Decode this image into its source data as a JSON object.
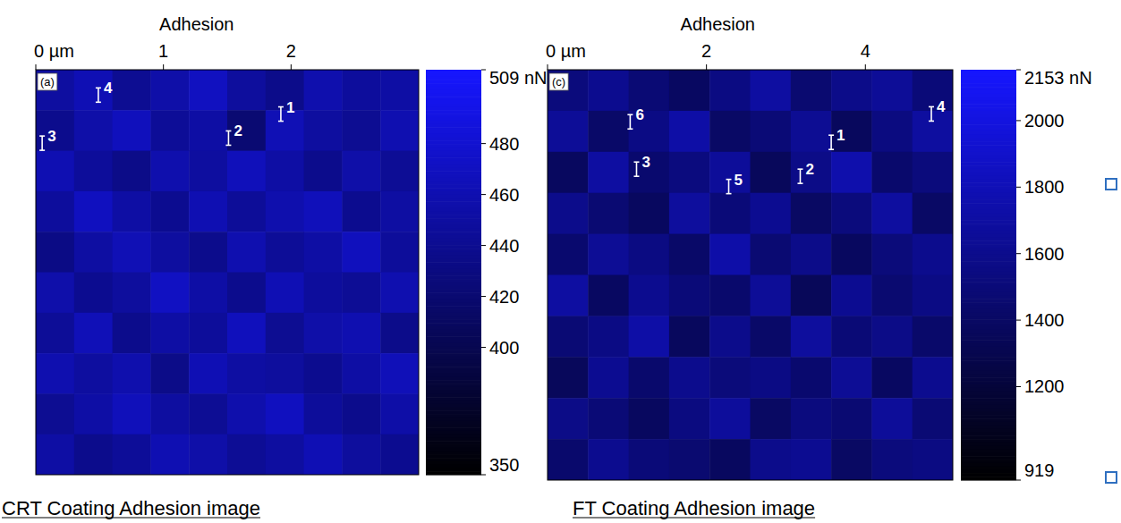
{
  "chart_data": [
    {
      "type": "heatmap",
      "title": "Adhesion",
      "panel": "(a)",
      "caption": "CRT Coating Adhesion image",
      "xlim": [
        0,
        3
      ],
      "xticks": [
        {
          "value": 0,
          "label": "0 µm"
        },
        1,
        2
      ],
      "ylim": [
        0,
        3.2
      ],
      "tick_labels": "x",
      "color": "#0000ff",
      "colorbar": {
        "range": [
          350,
          509
        ],
        "ticks": [
          {
            "value": 509,
            "label": "509 nN"
          },
          480,
          460,
          440,
          420,
          400,
          350
        ]
      },
      "cells": [
        [
          450,
          462,
          441,
          455,
          470,
          448,
          436,
          458,
          447,
          452
        ],
        [
          438,
          455,
          467,
          444,
          452,
          421,
          463,
          449,
          441,
          460
        ],
        [
          461,
          446,
          435,
          458,
          449,
          466,
          452,
          437,
          455,
          443
        ],
        [
          447,
          469,
          452,
          440,
          461,
          445,
          458,
          466,
          439,
          451
        ],
        [
          433,
          451,
          463,
          449,
          437,
          459,
          444,
          452,
          468,
          446
        ],
        [
          456,
          440,
          448,
          471,
          453,
          438,
          462,
          447,
          443,
          459
        ],
        [
          444,
          464,
          437,
          452,
          446,
          467,
          441,
          455,
          460,
          436
        ],
        [
          459,
          449,
          458,
          435,
          462,
          451,
          448,
          439,
          452,
          465
        ],
        [
          441,
          453,
          466,
          450,
          442,
          457,
          469,
          446,
          437,
          454
        ],
        [
          452,
          437,
          445,
          461,
          455,
          443,
          450,
          462,
          448,
          440
        ]
      ],
      "annotations": [
        {
          "text": "1",
          "x": 1.92,
          "y": 0.35
        },
        {
          "text": "2",
          "x": 1.51,
          "y": 0.54
        },
        {
          "text": "3",
          "x": 0.05,
          "y": 0.58
        },
        {
          "text": "4",
          "x": 0.49,
          "y": 0.2
        }
      ]
    },
    {
      "type": "heatmap",
      "title": "Adhesion",
      "panel": "(c)",
      "caption": "FT Coating Adhesion image",
      "xlim": [
        0,
        5.1
      ],
      "xticks": [
        {
          "value": 0,
          "label": "0 µm"
        },
        2,
        4
      ],
      "ylim": [
        0,
        5.2
      ],
      "tick_labels": "x",
      "color": "#0000ff",
      "colorbar": {
        "range": [
          919,
          2153
        ],
        "ticks": [
          {
            "value": 2153,
            "label": "2153 nN"
          },
          2000,
          1800,
          1600,
          1400,
          1200,
          919
        ]
      },
      "cells": [
        [
          1520,
          1610,
          1480,
          1390,
          1550,
          1700,
          1460,
          1580,
          1650,
          1500
        ],
        [
          1650,
          1420,
          1560,
          1720,
          1410,
          1490,
          1630,
          1370,
          1540,
          1690
        ],
        [
          1380,
          1700,
          1450,
          1530,
          1660,
          1360,
          1570,
          1750,
          1440,
          1520
        ],
        [
          1590,
          1470,
          1380,
          1680,
          1500,
          1620,
          1400,
          1520,
          1690,
          1410
        ],
        [
          1450,
          1640,
          1550,
          1420,
          1730,
          1470,
          1580,
          1380,
          1510,
          1600
        ],
        [
          1700,
          1390,
          1610,
          1500,
          1440,
          1650,
          1350,
          1620,
          1460,
          1560
        ],
        [
          1480,
          1560,
          1720,
          1370,
          1590,
          1420,
          1680,
          1490,
          1570,
          1430
        ],
        [
          1360,
          1620,
          1440,
          1600,
          1510,
          1560,
          1450,
          1640,
          1390,
          1610
        ],
        [
          1570,
          1490,
          1380,
          1540,
          1670,
          1400,
          1530,
          1470,
          1660,
          1480
        ],
        [
          1440,
          1610,
          1500,
          1460,
          1380,
          1590,
          1620,
          1400,
          1520,
          1550
        ]
      ],
      "annotations": [
        {
          "text": "1",
          "x": 3.57,
          "y": 0.92
        },
        {
          "text": "2",
          "x": 3.18,
          "y": 1.35
        },
        {
          "text": "3",
          "x": 1.12,
          "y": 1.26
        },
        {
          "text": "4",
          "x": 4.83,
          "y": 0.56
        },
        {
          "text": "5",
          "x": 2.28,
          "y": 1.48
        },
        {
          "text": "6",
          "x": 1.04,
          "y": 0.66
        }
      ]
    }
  ]
}
